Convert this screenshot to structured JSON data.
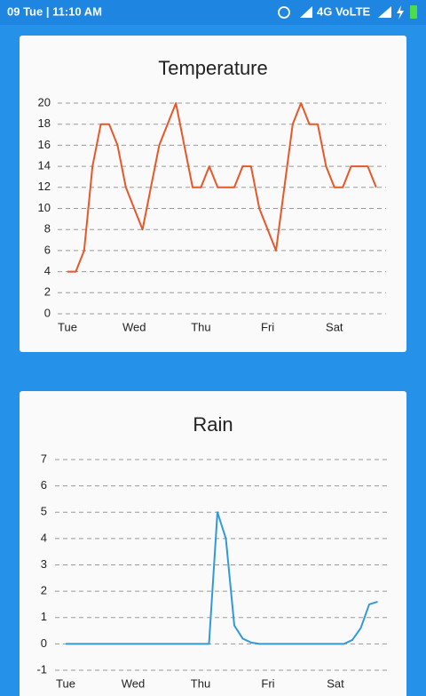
{
  "status_bar": {
    "time": "09 Tue | 11:10 AM",
    "network": "4G VoLTE"
  },
  "chart_data": [
    {
      "type": "line",
      "title": "Temperature",
      "categories": [
        "Tue",
        null,
        null,
        null,
        null,
        null,
        null,
        null,
        "Wed",
        null,
        null,
        null,
        null,
        null,
        null,
        null,
        "Thu",
        null,
        null,
        null,
        null,
        null,
        null,
        null,
        "Fri",
        null,
        null,
        null,
        null,
        null,
        null,
        null,
        "Sat",
        null,
        null,
        null,
        null,
        null
      ],
      "values": [
        4,
        4,
        6,
        14,
        18,
        18,
        16,
        12,
        10,
        8,
        12,
        16,
        18,
        20,
        16,
        12,
        12,
        14,
        12,
        12,
        12,
        14,
        14,
        10,
        8,
        6,
        12,
        18,
        20,
        18,
        18,
        14,
        12,
        12,
        14,
        14,
        14,
        12
      ],
      "color": "#e5582a",
      "ylim": [
        0,
        20
      ],
      "yticks": [
        0,
        2,
        4,
        6,
        8,
        10,
        12,
        14,
        16,
        18,
        20
      ],
      "grid": true
    },
    {
      "type": "line",
      "title": "Rain",
      "categories": [
        "Tue",
        null,
        null,
        null,
        null,
        null,
        null,
        null,
        "Wed",
        null,
        null,
        null,
        null,
        null,
        null,
        null,
        "Thu",
        null,
        null,
        null,
        null,
        null,
        null,
        null,
        "Fri",
        null,
        null,
        null,
        null,
        null,
        null,
        null,
        "Sat",
        null,
        null,
        null,
        null,
        null
      ],
      "values": [
        0,
        0,
        0,
        0,
        0,
        0,
        0,
        0,
        0,
        0,
        0,
        0,
        0,
        0,
        0,
        0,
        0,
        0,
        5.0,
        4.0,
        0.7,
        0.2,
        0.05,
        0,
        0,
        0,
        0,
        0,
        0,
        0,
        0,
        0,
        0,
        0,
        0.15,
        0.6,
        1.5,
        1.6
      ],
      "color": "#3399d6",
      "ylim": [
        -1,
        7
      ],
      "yticks": [
        -1,
        0,
        1,
        2,
        3,
        4,
        5,
        6,
        7
      ],
      "grid": true
    }
  ]
}
